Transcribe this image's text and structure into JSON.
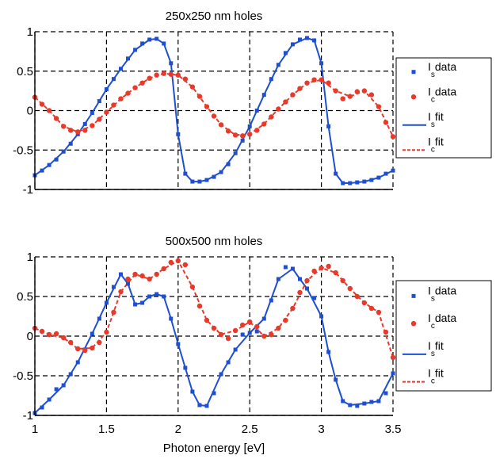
{
  "xlabel": "Photon energy [eV]",
  "chart_data": [
    {
      "type": "line",
      "title": "250x250 nm holes",
      "xlim": [
        1,
        3.5
      ],
      "ylim": [
        -1,
        1
      ],
      "grid": true,
      "legend_position": "right",
      "x_ticks": [
        1,
        1.5,
        2,
        2.5,
        3,
        3.5
      ],
      "x_tick_labels": [
        "",
        "",
        "",
        "",
        "",
        ""
      ],
      "y_ticks": [
        1,
        0.5,
        0,
        -0.5,
        -1
      ],
      "y_tick_labels": [
        "1",
        "0.5",
        "0",
        "-0.5",
        "-1"
      ],
      "series": [
        {
          "name": "I_s data",
          "label_main": "I",
          "label_sub": "s",
          "label_rest": "data",
          "kind": "marker-square",
          "color": "#1f4fd1",
          "x": [
            1.0,
            1.05,
            1.1,
            1.15,
            1.2,
            1.25,
            1.3,
            1.35,
            1.4,
            1.45,
            1.5,
            1.55,
            1.6,
            1.65,
            1.7,
            1.75,
            1.8,
            1.85,
            1.9,
            1.95,
            2.0,
            2.05,
            2.1,
            2.15,
            2.2,
            2.25,
            2.3,
            2.35,
            2.4,
            2.45,
            2.5,
            2.55,
            2.6,
            2.65,
            2.7,
            2.75,
            2.8,
            2.85,
            2.9,
            2.95,
            3.0,
            3.05,
            3.1,
            3.15,
            3.2,
            3.25,
            3.3,
            3.35,
            3.4,
            3.45,
            3.5
          ],
          "y": [
            -0.82,
            -0.76,
            -0.69,
            -0.62,
            -0.52,
            -0.42,
            -0.3,
            -0.17,
            -0.03,
            0.12,
            0.27,
            0.4,
            0.53,
            0.66,
            0.77,
            0.85,
            0.9,
            0.91,
            0.85,
            0.6,
            -0.3,
            -0.8,
            -0.9,
            -0.9,
            -0.88,
            -0.84,
            -0.78,
            -0.68,
            -0.54,
            -0.38,
            -0.2,
            0.0,
            0.2,
            0.4,
            0.58,
            0.73,
            0.84,
            0.9,
            0.92,
            0.89,
            0.6,
            -0.2,
            -0.8,
            -0.92,
            -0.92,
            -0.91,
            -0.9,
            -0.88,
            -0.85,
            -0.8,
            -0.76
          ]
        },
        {
          "name": "I_c data",
          "label_main": "I",
          "label_sub": "c",
          "label_rest": "data",
          "kind": "marker-circle",
          "color": "#e8392a",
          "x": [
            1.0,
            1.05,
            1.1,
            1.15,
            1.2,
            1.25,
            1.3,
            1.35,
            1.4,
            1.45,
            1.5,
            1.55,
            1.6,
            1.65,
            1.7,
            1.75,
            1.8,
            1.85,
            1.9,
            1.95,
            2.0,
            2.05,
            2.1,
            2.15,
            2.2,
            2.25,
            2.3,
            2.35,
            2.4,
            2.45,
            2.5,
            2.55,
            2.6,
            2.65,
            2.7,
            2.75,
            2.8,
            2.85,
            2.9,
            2.95,
            3.0,
            3.05,
            3.1,
            3.15,
            3.2,
            3.25,
            3.3,
            3.35,
            3.4,
            3.45,
            3.5
          ],
          "y": [
            0.17,
            0.08,
            0.0,
            -0.1,
            -0.2,
            -0.25,
            -0.27,
            -0.25,
            -0.19,
            -0.11,
            -0.02,
            0.07,
            0.15,
            0.22,
            0.29,
            0.35,
            0.41,
            0.45,
            0.47,
            0.46,
            0.45,
            0.4,
            0.3,
            0.18,
            0.05,
            -0.07,
            -0.18,
            -0.26,
            -0.31,
            -0.32,
            -0.3,
            -0.25,
            -0.17,
            -0.08,
            0.02,
            0.11,
            0.2,
            0.28,
            0.35,
            0.39,
            0.39,
            0.35,
            0.25,
            0.15,
            0.18,
            0.24,
            0.25,
            0.2,
            0.05,
            -0.15,
            -0.33
          ]
        },
        {
          "name": "I_s fit",
          "label_main": "I",
          "label_sub": "s",
          "label_rest": "fit",
          "kind": "line-solid",
          "color": "#1f4fd1",
          "x": [
            1.0,
            1.1,
            1.2,
            1.3,
            1.4,
            1.5,
            1.6,
            1.7,
            1.8,
            1.85,
            1.9,
            1.95,
            2.0,
            2.05,
            2.1,
            2.15,
            2.2,
            2.3,
            2.4,
            2.5,
            2.6,
            2.7,
            2.8,
            2.9,
            2.95,
            3.0,
            3.05,
            3.1,
            3.15,
            3.2,
            3.3,
            3.4,
            3.5
          ],
          "y": [
            -0.82,
            -0.69,
            -0.52,
            -0.3,
            -0.03,
            0.27,
            0.53,
            0.77,
            0.9,
            0.91,
            0.85,
            0.6,
            -0.3,
            -0.8,
            -0.9,
            -0.9,
            -0.88,
            -0.78,
            -0.54,
            -0.2,
            0.2,
            0.58,
            0.84,
            0.92,
            0.89,
            0.6,
            -0.2,
            -0.8,
            -0.92,
            -0.92,
            -0.9,
            -0.85,
            -0.76
          ]
        },
        {
          "name": "I_c fit",
          "label_main": "I",
          "label_sub": "c",
          "label_rest": "fit",
          "kind": "line-dashed",
          "color": "#e8392a",
          "x": [
            1.0,
            1.1,
            1.2,
            1.3,
            1.4,
            1.5,
            1.6,
            1.7,
            1.8,
            1.9,
            2.0,
            2.1,
            2.2,
            2.3,
            2.4,
            2.5,
            2.6,
            2.7,
            2.8,
            2.9,
            3.0,
            3.1,
            3.2,
            3.3,
            3.4,
            3.5
          ],
          "y": [
            0.17,
            0.0,
            -0.2,
            -0.27,
            -0.19,
            -0.02,
            0.15,
            0.29,
            0.41,
            0.47,
            0.45,
            0.3,
            0.05,
            -0.18,
            -0.31,
            -0.3,
            -0.17,
            0.02,
            0.2,
            0.35,
            0.39,
            0.25,
            0.18,
            0.25,
            0.05,
            -0.33
          ]
        }
      ]
    },
    {
      "type": "line",
      "title": "500x500 nm holes",
      "xlim": [
        1,
        3.5
      ],
      "ylim": [
        -1,
        1
      ],
      "grid": true,
      "legend_position": "right",
      "x_ticks": [
        1,
        1.5,
        2,
        2.5,
        3,
        3.5
      ],
      "x_tick_labels": [
        "1",
        "1.5",
        "2",
        "2.5",
        "3",
        "3.5"
      ],
      "y_ticks": [
        1,
        0.5,
        0,
        -0.5,
        -1
      ],
      "y_tick_labels": [
        "1",
        "0.5",
        "0",
        "-0.5",
        "-1"
      ],
      "series": [
        {
          "name": "I_s data",
          "label_main": "I",
          "label_sub": "s",
          "label_rest": "data",
          "kind": "marker-square",
          "color": "#1f4fd1",
          "x": [
            1.0,
            1.05,
            1.1,
            1.15,
            1.2,
            1.25,
            1.3,
            1.35,
            1.4,
            1.45,
            1.5,
            1.55,
            1.6,
            1.65,
            1.7,
            1.75,
            1.8,
            1.85,
            1.9,
            1.95,
            2.0,
            2.05,
            2.1,
            2.15,
            2.2,
            2.25,
            2.3,
            2.35,
            2.4,
            2.45,
            2.5,
            2.55,
            2.6,
            2.65,
            2.7,
            2.75,
            2.8,
            2.85,
            2.9,
            2.95,
            3.0,
            3.05,
            3.1,
            3.15,
            3.2,
            3.25,
            3.3,
            3.35,
            3.4,
            3.45,
            3.5
          ],
          "y": [
            -0.97,
            -0.9,
            -0.8,
            -0.67,
            -0.62,
            -0.48,
            -0.33,
            -0.17,
            0.03,
            0.22,
            0.42,
            0.62,
            0.78,
            0.66,
            0.4,
            0.42,
            0.5,
            0.53,
            0.5,
            0.22,
            -0.1,
            -0.4,
            -0.7,
            -0.87,
            -0.88,
            -0.72,
            -0.48,
            -0.33,
            -0.17,
            0.02,
            0.04,
            0.06,
            0.22,
            0.45,
            0.72,
            0.87,
            0.85,
            0.72,
            0.6,
            0.48,
            0.25,
            -0.2,
            -0.55,
            -0.82,
            -0.87,
            -0.88,
            -0.85,
            -0.83,
            -0.82,
            -0.72,
            -0.47
          ]
        },
        {
          "name": "I_c data",
          "label_main": "I",
          "label_sub": "c",
          "label_rest": "data",
          "kind": "marker-circle",
          "color": "#e8392a",
          "x": [
            1.0,
            1.05,
            1.1,
            1.15,
            1.2,
            1.25,
            1.3,
            1.35,
            1.4,
            1.45,
            1.5,
            1.55,
            1.6,
            1.65,
            1.7,
            1.75,
            1.8,
            1.85,
            1.9,
            1.95,
            2.0,
            2.05,
            2.1,
            2.15,
            2.2,
            2.25,
            2.3,
            2.35,
            2.4,
            2.45,
            2.5,
            2.55,
            2.6,
            2.65,
            2.7,
            2.75,
            2.8,
            2.85,
            2.9,
            2.95,
            3.0,
            3.05,
            3.1,
            3.15,
            3.2,
            3.25,
            3.3,
            3.35,
            3.4,
            3.45,
            3.5
          ],
          "y": [
            0.1,
            0.06,
            0.02,
            0.03,
            -0.02,
            -0.08,
            -0.16,
            -0.18,
            -0.15,
            -0.08,
            0.05,
            0.3,
            0.56,
            0.72,
            0.78,
            0.76,
            0.72,
            0.78,
            0.85,
            0.93,
            0.95,
            0.9,
            0.62,
            0.38,
            0.2,
            0.1,
            0.02,
            -0.03,
            0.07,
            0.14,
            0.18,
            0.12,
            0.0,
            0.02,
            0.1,
            0.2,
            0.35,
            0.55,
            0.7,
            0.82,
            0.86,
            0.88,
            0.8,
            0.7,
            0.6,
            0.5,
            0.42,
            0.35,
            0.3,
            0.05,
            -0.27
          ]
        },
        {
          "name": "I_s fit",
          "label_main": "I",
          "label_sub": "s",
          "label_rest": "fit",
          "kind": "line-solid",
          "color": "#1f4fd1",
          "x": [
            1.0,
            1.1,
            1.2,
            1.3,
            1.4,
            1.5,
            1.6,
            1.65,
            1.7,
            1.75,
            1.8,
            1.85,
            1.9,
            1.95,
            2.0,
            2.1,
            2.15,
            2.2,
            2.3,
            2.4,
            2.5,
            2.6,
            2.7,
            2.8,
            2.85,
            2.9,
            3.0,
            3.05,
            3.1,
            3.15,
            3.2,
            3.3,
            3.4,
            3.5
          ],
          "y": [
            -0.97,
            -0.8,
            -0.62,
            -0.33,
            0.03,
            0.42,
            0.78,
            0.66,
            0.4,
            0.42,
            0.5,
            0.53,
            0.5,
            0.22,
            -0.1,
            -0.7,
            -0.87,
            -0.88,
            -0.48,
            -0.17,
            0.04,
            0.22,
            0.72,
            0.85,
            0.72,
            0.6,
            0.25,
            -0.2,
            -0.55,
            -0.82,
            -0.87,
            -0.85,
            -0.82,
            -0.47
          ]
        },
        {
          "name": "I_c fit",
          "label_main": "I",
          "label_sub": "c",
          "label_rest": "fit",
          "kind": "line-dashed",
          "color": "#e8392a",
          "x": [
            1.0,
            1.1,
            1.2,
            1.3,
            1.4,
            1.5,
            1.6,
            1.7,
            1.8,
            1.9,
            2.0,
            2.1,
            2.2,
            2.3,
            2.4,
            2.5,
            2.6,
            2.7,
            2.8,
            2.9,
            3.0,
            3.1,
            3.2,
            3.3,
            3.4,
            3.5
          ],
          "y": [
            0.1,
            0.02,
            -0.02,
            -0.16,
            -0.15,
            0.05,
            0.56,
            0.78,
            0.72,
            0.85,
            0.95,
            0.62,
            0.2,
            0.02,
            0.07,
            0.18,
            0.0,
            0.1,
            0.35,
            0.7,
            0.86,
            0.8,
            0.6,
            0.42,
            0.3,
            -0.27
          ]
        }
      ]
    }
  ]
}
